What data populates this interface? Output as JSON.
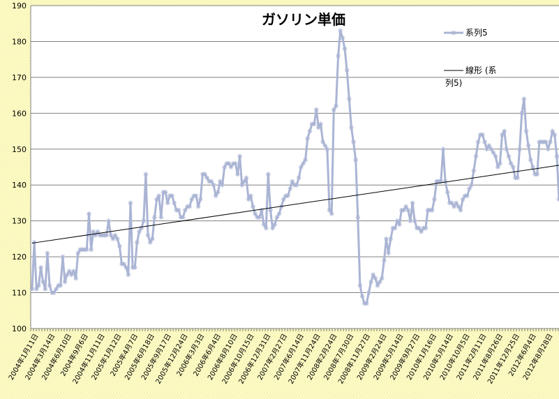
{
  "chart_data": {
    "type": "line",
    "title": "ガソリン単価",
    "ylim": [
      100,
      190
    ],
    "y_ticks": [
      100,
      110,
      120,
      130,
      140,
      150,
      160,
      170,
      180,
      190
    ],
    "grid": true,
    "legend_placement": "right",
    "colors": {
      "background": "#ffffff",
      "outer_fill": "#ffffc8",
      "series_line": "#aab4d4",
      "trend_line": "#000000",
      "grid": "#808080"
    },
    "x_tick_labels": [
      "2004年1月11日",
      "2004年3月14日",
      "2004年6月10日",
      "2004年9月6日",
      "2004年11月11日",
      "2005年1月12日",
      "2005年4月7日",
      "2005年6月18日",
      "2005年9月17日",
      "2005年12月24日",
      "2006年3月3日",
      "2006年6月4日",
      "2006年8月10日",
      "2006年10月15日",
      "2006年12月31日",
      "2007年2月27日",
      "2007年6月14日",
      "2007年11月24日",
      "2008年2月24日",
      "2008年7月30日",
      "2008年11月27日",
      "2009年2月24日",
      "2009年5月14日",
      "2009年9月27日",
      "2010年1月16日",
      "2010年5月14日",
      "2010年10月5日",
      "2011年2月11日",
      "2011年8月26日",
      "2011年12月25日",
      "2012年6月4日",
      "2012年8月28日"
    ],
    "series": [
      {
        "name": "系列5",
        "values": [
          111,
          124,
          111,
          112,
          117,
          113,
          111,
          121,
          112,
          110,
          110,
          111,
          112,
          112,
          120,
          113,
          115,
          116,
          115,
          116,
          114,
          121,
          122,
          122,
          122,
          122,
          132,
          122,
          127,
          126,
          127,
          126,
          126,
          126,
          126,
          130,
          126,
          125,
          126,
          125,
          123,
          118,
          118,
          117,
          115,
          135,
          117,
          117,
          124,
          127,
          128,
          130,
          143,
          126,
          124,
          125,
          131,
          136,
          137,
          131,
          138,
          138,
          135,
          137,
          137,
          135,
          133,
          133,
          131,
          131,
          133,
          134,
          134,
          136,
          137,
          137,
          134,
          136,
          143,
          143,
          142,
          141,
          141,
          140,
          137,
          138,
          141,
          140,
          145,
          146,
          146,
          145,
          146,
          146,
          143,
          148,
          140,
          141,
          142,
          136,
          137,
          134,
          132,
          131,
          131,
          133,
          129,
          128,
          143,
          133,
          128,
          129,
          131,
          132,
          134,
          136,
          137,
          137,
          139,
          141,
          140,
          140,
          142,
          145,
          146,
          147,
          153,
          155,
          157,
          157,
          161,
          156,
          157,
          152,
          151,
          150,
          133,
          132,
          161,
          162,
          176,
          183,
          181,
          178,
          172,
          164,
          156,
          152,
          147,
          131,
          112,
          109,
          107,
          107,
          110,
          113,
          115,
          114,
          112,
          113,
          114,
          119,
          125,
          121,
          125,
          128,
          128,
          130,
          129,
          133,
          133,
          134,
          133,
          130,
          135,
          130,
          128,
          128,
          127,
          128,
          128,
          133,
          133,
          133,
          136,
          141,
          141,
          141,
          150,
          141,
          138,
          135,
          135,
          134,
          135,
          134,
          133,
          136,
          137,
          137,
          139,
          140,
          144,
          148,
          152,
          154,
          154,
          152,
          150,
          151,
          150,
          149,
          148,
          145,
          146,
          154,
          155,
          150,
          148,
          146,
          145,
          142,
          142,
          150,
          160,
          164,
          155,
          151,
          147,
          145,
          143,
          143,
          152,
          152,
          152,
          152,
          150,
          152,
          155,
          154,
          148,
          136
        ]
      },
      {
        "name": "線形 (系列5)",
        "trend": [
          123.8,
          145.5
        ]
      }
    ]
  }
}
